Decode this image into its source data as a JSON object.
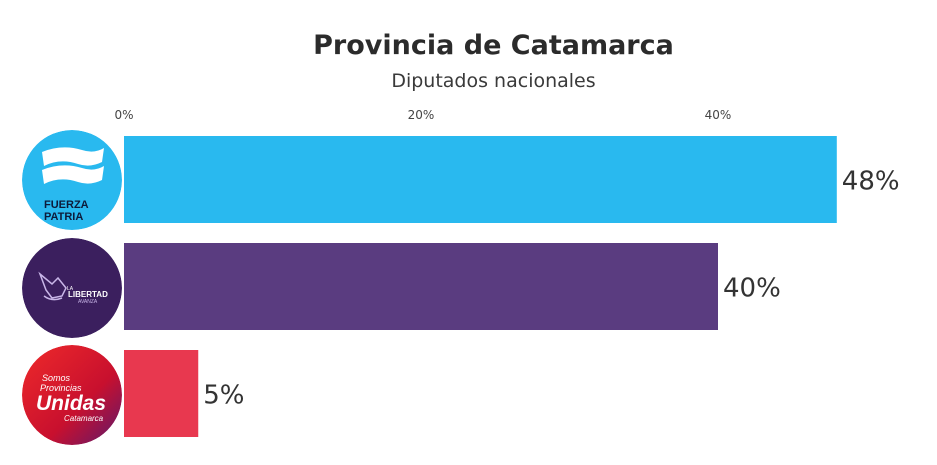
{
  "chart_data": {
    "type": "bar",
    "orientation": "horizontal",
    "title": "Provincia de Catamarca",
    "subtitle": "Diputados nacionales",
    "categories": [
      "Fuerza Patria",
      "La Libertad Avanza",
      "Somos Provincias Unidas Catamarca"
    ],
    "values": [
      48,
      40,
      5
    ],
    "value_labels": [
      "48%",
      "40%",
      "5%"
    ],
    "colors": [
      "#29b9ef",
      "#5a3c80",
      "#e8384f"
    ],
    "xlim": [
      0,
      48
    ],
    "x_ticks": [
      0,
      20,
      40
    ],
    "x_tick_labels": [
      "0%",
      "20%",
      "40%"
    ],
    "x_axis_position": "top",
    "grid": false,
    "legend": "none"
  },
  "logos": [
    {
      "icon": "fuerza-patria-logo",
      "lines": [
        "FUERZA",
        "PATRIA"
      ],
      "bg": "#29b9ef"
    },
    {
      "icon": "libertad-avanza-logo",
      "lines": [
        "LIBERTAD",
        "AVANZA"
      ],
      "small": "LA",
      "bg": "#3b1f5e"
    },
    {
      "icon": "somos-provincias-unidas-logo",
      "lines": [
        "Somos",
        "Provincias",
        "Unidas",
        "Catamarca"
      ],
      "bg": "#d8202e"
    }
  ]
}
